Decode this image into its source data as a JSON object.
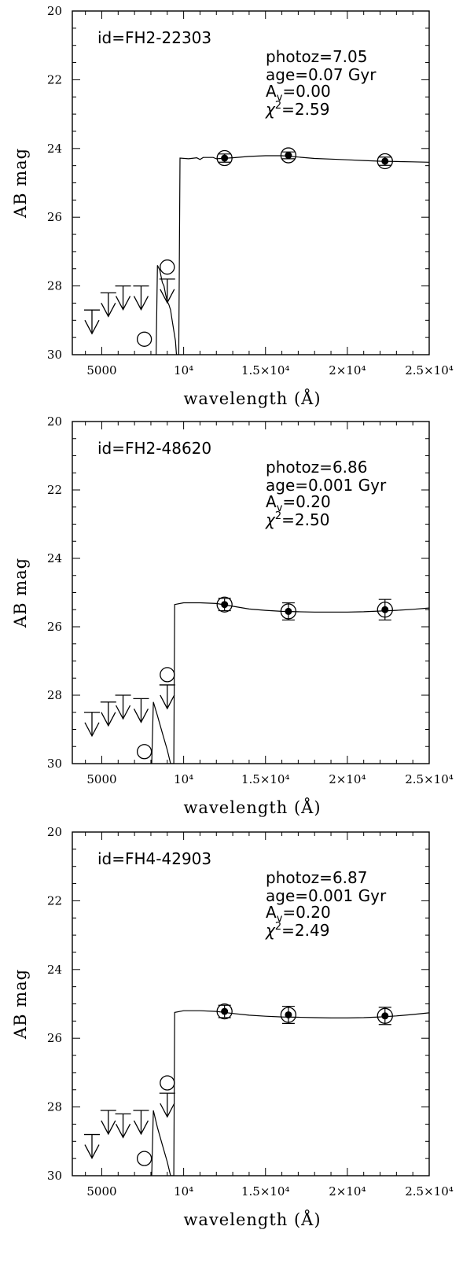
{
  "chart_data": [
    {
      "type": "scatter",
      "object_id": "id=FH2-22303",
      "photoz": "photoz=7.05",
      "age": "age=0.07 Gyr",
      "av": "0.00",
      "chi2": "2.59",
      "xlabel": "wavelength (Å)",
      "ylabel": "AB mag",
      "xlim": [
        3200,
        25000
      ],
      "ylim": [
        30,
        20
      ],
      "y_ticks": [
        20,
        22,
        24,
        26,
        28,
        30
      ],
      "x_ticks": [
        {
          "value": 5000,
          "label": "5000"
        },
        {
          "value": 10000,
          "label": "10⁴"
        },
        {
          "value": 15000,
          "label": "1.5×10⁴"
        },
        {
          "value": 20000,
          "label": "2×10⁴"
        },
        {
          "value": 25000,
          "label": "2.5×10⁴"
        }
      ],
      "detections": [
        {
          "wavelength": 12500,
          "mag": 24.28,
          "err": 0.12
        },
        {
          "wavelength": 16400,
          "mag": 24.2,
          "err": 0.1
        },
        {
          "wavelength": 22300,
          "mag": 24.37,
          "err": 0.12
        }
      ],
      "open_points": [
        {
          "wavelength": 7600,
          "mag": 29.55
        },
        {
          "wavelength": 9000,
          "mag": 27.45
        }
      ],
      "upper_limits": [
        {
          "wavelength": 4400,
          "mag": 28.7
        },
        {
          "wavelength": 5400,
          "mag": 28.2
        },
        {
          "wavelength": 6300,
          "mag": 28.0
        },
        {
          "wavelength": 7400,
          "mag": 28.0
        },
        {
          "wavelength": 9000,
          "mag": 27.8
        }
      ],
      "model_sed": [
        [
          8320,
          30
        ],
        [
          8400,
          27.4
        ],
        [
          8550,
          27.55
        ],
        [
          8700,
          27.9
        ],
        [
          8800,
          28.0
        ],
        [
          8900,
          28.25
        ],
        [
          9000,
          28.45
        ],
        [
          9100,
          28.55
        ],
        [
          9200,
          28.7
        ],
        [
          9300,
          29.0
        ],
        [
          9400,
          29.3
        ],
        [
          9500,
          29.6
        ],
        [
          9560,
          30
        ],
        [
          9700,
          30
        ],
        [
          9780,
          24.28
        ],
        [
          10300,
          24.3
        ],
        [
          10800,
          24.27
        ],
        [
          11000,
          24.32
        ],
        [
          11200,
          24.26
        ],
        [
          11800,
          24.26
        ],
        [
          12000,
          24.3
        ],
        [
          13000,
          24.27
        ],
        [
          14000,
          24.23
        ],
        [
          15000,
          24.21
        ],
        [
          16000,
          24.21
        ],
        [
          17000,
          24.25
        ],
        [
          18000,
          24.29
        ],
        [
          19000,
          24.31
        ],
        [
          20000,
          24.33
        ],
        [
          21000,
          24.35
        ],
        [
          22000,
          24.37
        ],
        [
          23000,
          24.38
        ],
        [
          24000,
          24.39
        ],
        [
          25000,
          24.4
        ]
      ]
    },
    {
      "type": "scatter",
      "object_id": "id=FH2-48620",
      "photoz": "photoz=6.86",
      "age": "age=0.001 Gyr",
      "av": "0.20",
      "chi2": "2.50",
      "xlabel": "wavelength (Å)",
      "ylabel": "AB mag",
      "xlim": [
        3200,
        25000
      ],
      "ylim": [
        30,
        20
      ],
      "y_ticks": [
        20,
        22,
        24,
        26,
        28,
        30
      ],
      "x_ticks": [
        {
          "value": 5000,
          "label": "5000"
        },
        {
          "value": 10000,
          "label": "10⁴"
        },
        {
          "value": 15000,
          "label": "1.5×10⁴"
        },
        {
          "value": 20000,
          "label": "2×10⁴"
        },
        {
          "value": 25000,
          "label": "2.5×10⁴"
        }
      ],
      "detections": [
        {
          "wavelength": 12500,
          "mag": 25.35,
          "err": 0.18
        },
        {
          "wavelength": 16400,
          "mag": 25.55,
          "err": 0.25
        },
        {
          "wavelength": 22300,
          "mag": 25.5,
          "err": 0.3
        }
      ],
      "open_points": [
        {
          "wavelength": 7600,
          "mag": 29.65
        },
        {
          "wavelength": 9000,
          "mag": 27.4
        }
      ],
      "upper_limits": [
        {
          "wavelength": 4400,
          "mag": 28.5
        },
        {
          "wavelength": 5400,
          "mag": 28.2
        },
        {
          "wavelength": 6300,
          "mag": 28.0
        },
        {
          "wavelength": 7400,
          "mag": 28.1
        },
        {
          "wavelength": 9000,
          "mag": 27.7
        }
      ],
      "model_sed": [
        [
          8050,
          30
        ],
        [
          8150,
          28.2
        ],
        [
          8400,
          28.6
        ],
        [
          8700,
          29.1
        ],
        [
          9000,
          29.6
        ],
        [
          9200,
          30
        ],
        [
          9400,
          30
        ],
        [
          9450,
          25.35
        ],
        [
          10000,
          25.3
        ],
        [
          11000,
          25.3
        ],
        [
          12000,
          25.32
        ],
        [
          13000,
          25.4
        ],
        [
          14000,
          25.48
        ],
        [
          15000,
          25.52
        ],
        [
          16000,
          25.55
        ],
        [
          17000,
          25.56
        ],
        [
          18000,
          25.57
        ],
        [
          19000,
          25.57
        ],
        [
          20000,
          25.57
        ],
        [
          21000,
          25.56
        ],
        [
          22000,
          25.54
        ],
        [
          23000,
          25.52
        ],
        [
          24000,
          25.49
        ],
        [
          25000,
          25.45
        ]
      ]
    },
    {
      "type": "scatter",
      "object_id": "id=FH4-42903",
      "photoz": "photoz=6.87",
      "age": "age=0.001 Gyr",
      "av": "0.20",
      "chi2": "2.49",
      "xlabel": "wavelength (Å)",
      "ylabel": "AB mag",
      "xlim": [
        3200,
        25000
      ],
      "ylim": [
        30,
        20
      ],
      "y_ticks": [
        20,
        22,
        24,
        26,
        28,
        30
      ],
      "x_ticks": [
        {
          "value": 5000,
          "label": "5000"
        },
        {
          "value": 10000,
          "label": "10⁴"
        },
        {
          "value": 15000,
          "label": "1.5×10⁴"
        },
        {
          "value": 20000,
          "label": "2×10⁴"
        },
        {
          "value": 25000,
          "label": "2.5×10⁴"
        }
      ],
      "detections": [
        {
          "wavelength": 12500,
          "mag": 25.22,
          "err": 0.18
        },
        {
          "wavelength": 16400,
          "mag": 25.32,
          "err": 0.25
        },
        {
          "wavelength": 22300,
          "mag": 25.35,
          "err": 0.25
        }
      ],
      "open_points": [
        {
          "wavelength": 7600,
          "mag": 29.5
        },
        {
          "wavelength": 9000,
          "mag": 27.3
        }
      ],
      "upper_limits": [
        {
          "wavelength": 4400,
          "mag": 28.8
        },
        {
          "wavelength": 5400,
          "mag": 28.1
        },
        {
          "wavelength": 6300,
          "mag": 28.2
        },
        {
          "wavelength": 7400,
          "mag": 28.1
        },
        {
          "wavelength": 9000,
          "mag": 27.6
        }
      ],
      "model_sed": [
        [
          8050,
          30
        ],
        [
          8150,
          28.1
        ],
        [
          8400,
          28.6
        ],
        [
          8700,
          29.1
        ],
        [
          9000,
          29.6
        ],
        [
          9200,
          30
        ],
        [
          9400,
          30
        ],
        [
          9450,
          25.25
        ],
        [
          10000,
          25.2
        ],
        [
          11000,
          25.2
        ],
        [
          12000,
          25.22
        ],
        [
          13000,
          25.28
        ],
        [
          14000,
          25.33
        ],
        [
          15000,
          25.36
        ],
        [
          16000,
          25.38
        ],
        [
          17000,
          25.39
        ],
        [
          18000,
          25.4
        ],
        [
          19000,
          25.41
        ],
        [
          20000,
          25.41
        ],
        [
          21000,
          25.4
        ],
        [
          22000,
          25.38
        ],
        [
          23000,
          25.35
        ],
        [
          24000,
          25.31
        ],
        [
          25000,
          25.26
        ]
      ]
    }
  ]
}
